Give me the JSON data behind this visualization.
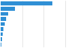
{
  "values": [
    4800,
    1300,
    680,
    490,
    360,
    270,
    200,
    130,
    60
  ],
  "bar_color": "#2F8FD5",
  "background_color": "#ffffff",
  "grid_color": "#d9d9d9",
  "xlim": [
    0,
    6200
  ]
}
